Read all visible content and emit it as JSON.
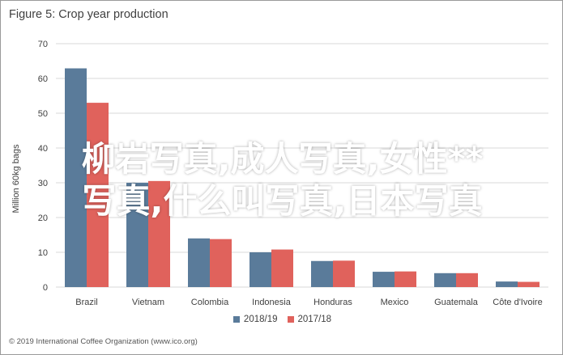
{
  "chart_data": {
    "type": "bar",
    "title": "Figure 5: Crop year production",
    "ylabel": "Million 60kg bags",
    "xlabel": "",
    "ylim": [
      0,
      70
    ],
    "yticks": [
      0,
      10,
      20,
      30,
      40,
      50,
      60,
      70
    ],
    "grid": true,
    "legend_position": "bottom",
    "categories": [
      "Brazil",
      "Vietnam",
      "Colombia",
      "Indonesia",
      "Honduras",
      "Mexico",
      "Guatemala",
      "Côte d'Ivoire"
    ],
    "series": [
      {
        "name": "2018/19",
        "color": "#5a7b9a",
        "values": [
          62.9,
          30.0,
          14.0,
          10.0,
          7.5,
          4.4,
          4.0,
          1.6
        ]
      },
      {
        "name": "2017/18",
        "color": "#e0625c",
        "values": [
          53.0,
          30.5,
          13.8,
          10.8,
          7.6,
          4.5,
          4.0,
          1.5
        ]
      }
    ]
  },
  "source_note": "© 2019 International Coffee Organization (www.ico.org)",
  "watermark": {
    "line1": "柳岩写真,成人写真,女性**",
    "line2": "写真,什么叫写真,日本写真"
  }
}
